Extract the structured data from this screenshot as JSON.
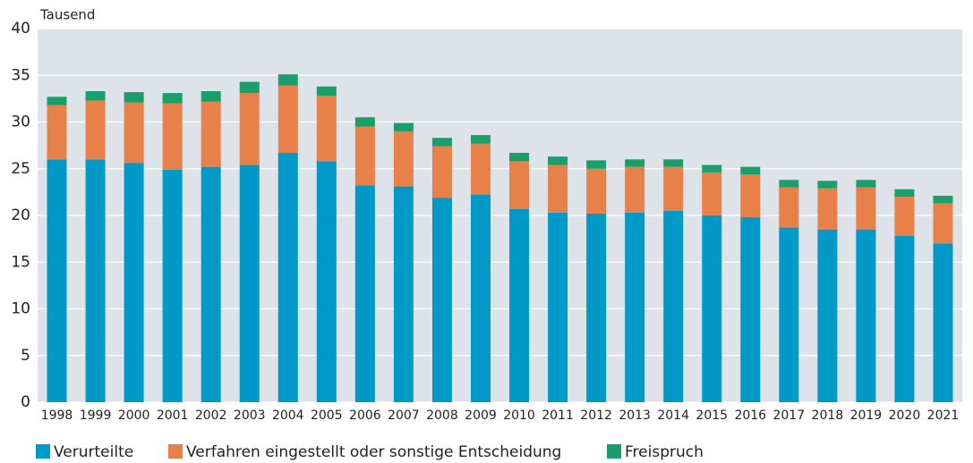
{
  "chart_data": {
    "type": "stacked_bar",
    "y_label": "Tausend",
    "categories": [
      "1998",
      "1999",
      "2000",
      "2001",
      "2002",
      "2003",
      "2004",
      "2005",
      "2006",
      "2007",
      "2008",
      "2009",
      "2010",
      "2011",
      "2012",
      "2013",
      "2014",
      "2015",
      "2016",
      "2017",
      "2018",
      "2019",
      "2020",
      "2021"
    ],
    "series": [
      {
        "name": "Verurteilte",
        "color": "#0099c8",
        "values": [
          26.0,
          26.0,
          25.6,
          24.9,
          25.2,
          25.4,
          26.7,
          25.8,
          23.2,
          23.1,
          21.9,
          22.2,
          20.7,
          20.3,
          20.2,
          20.3,
          20.5,
          20.0,
          19.8,
          18.7,
          18.5,
          18.5,
          17.8,
          17.0
        ]
      },
      {
        "name": "Verfahren eingestellt oder sonstige Entscheidung",
        "color": "#e8804a",
        "values": [
          5.8,
          6.3,
          6.5,
          7.1,
          7.0,
          7.7,
          7.2,
          7.0,
          6.3,
          5.9,
          5.5,
          5.5,
          5.1,
          5.1,
          4.8,
          4.9,
          4.7,
          4.6,
          4.6,
          4.3,
          4.4,
          4.5,
          4.2,
          4.3
        ]
      },
      {
        "name": "Freispruch",
        "color": "#1a9e6a",
        "values": [
          0.9,
          1.0,
          1.1,
          1.1,
          1.1,
          1.2,
          1.2,
          1.0,
          1.0,
          0.9,
          0.9,
          0.9,
          0.9,
          0.9,
          0.9,
          0.8,
          0.8,
          0.8,
          0.8,
          0.8,
          0.8,
          0.8,
          0.8,
          0.8
        ]
      }
    ],
    "ylim": [
      0,
      40
    ],
    "yticks": [
      0,
      5,
      10,
      15,
      20,
      25,
      30,
      35,
      40
    ],
    "grid": true
  }
}
